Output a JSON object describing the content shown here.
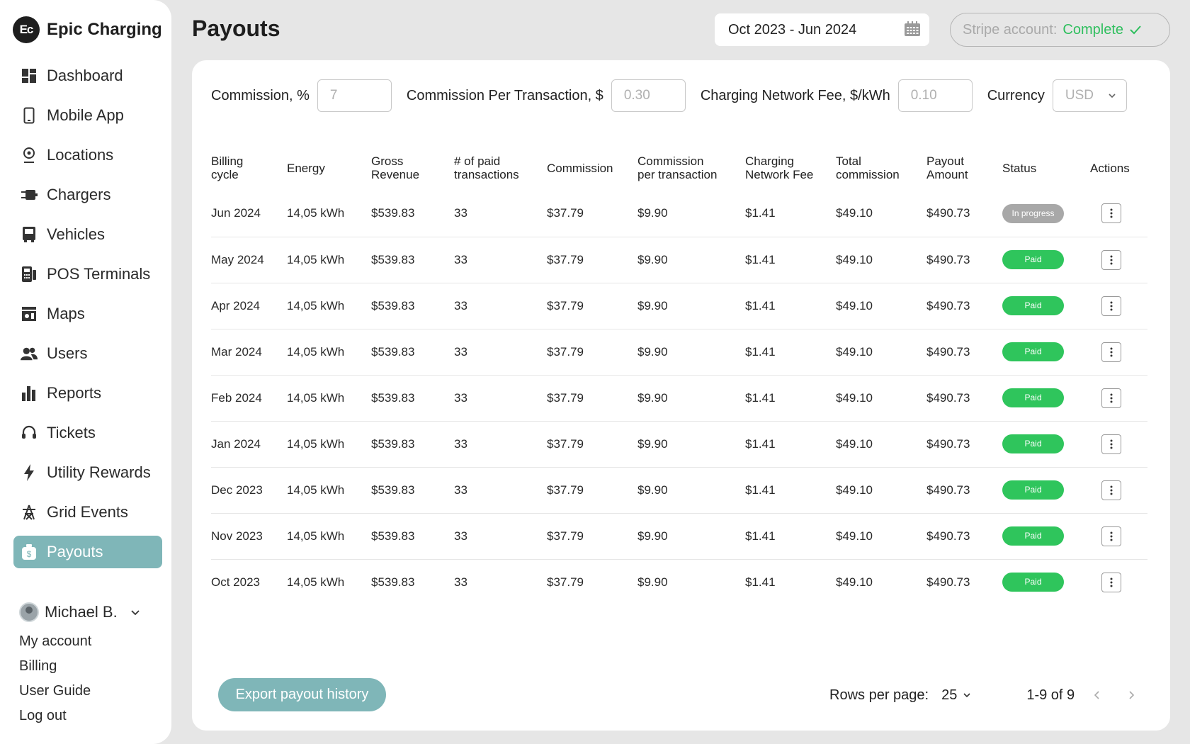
{
  "brand": {
    "logo_text": "Ec",
    "name": "Epic Charging"
  },
  "sidebar": {
    "items": [
      {
        "label": "Dashboard",
        "icon": "dashboard-icon"
      },
      {
        "label": "Mobile App",
        "icon": "phone-icon"
      },
      {
        "label": "Locations",
        "icon": "location-pin-icon"
      },
      {
        "label": "Chargers",
        "icon": "charger-plug-icon"
      },
      {
        "label": "Vehicles",
        "icon": "bus-icon"
      },
      {
        "label": "POS Terminals",
        "icon": "pos-terminal-icon"
      },
      {
        "label": "Maps",
        "icon": "map-icon"
      },
      {
        "label": "Users",
        "icon": "users-icon"
      },
      {
        "label": "Reports",
        "icon": "bar-chart-icon"
      },
      {
        "label": "Tickets",
        "icon": "headset-icon"
      },
      {
        "label": "Utility Rewards",
        "icon": "lightning-icon"
      },
      {
        "label": "Grid Events",
        "icon": "grid-tower-icon"
      },
      {
        "label": "Payouts",
        "icon": "money-bag-icon",
        "active": true
      }
    ]
  },
  "user": {
    "name": "Michael B.",
    "links": [
      "My account",
      "Billing",
      "User Guide",
      "Log out"
    ]
  },
  "header": {
    "title": "Payouts",
    "date_range": "Oct 2023 - Jun 2024",
    "stripe_label": "Stripe account:",
    "stripe_status": "Complete"
  },
  "filters": {
    "commission_label": "Commission, %",
    "commission_value": "7",
    "per_tx_label": "Commission Per Transaction, $",
    "per_tx_value": "0.30",
    "network_fee_label": "Charging Network Fee, $/kWh",
    "network_fee_value": "0.10",
    "currency_label": "Currency",
    "currency_value": "USD"
  },
  "table": {
    "headers": {
      "billing_cycle_1": "Billing",
      "billing_cycle_2": "cycle",
      "energy": "Energy",
      "gross_1": "Gross",
      "gross_2": "Revenue",
      "paid_tx_1": "# of paid",
      "paid_tx_2": "transactions",
      "commission": "Commission",
      "per_tx_1": "Commission",
      "per_tx_2": "per transaction",
      "network_1": "Charging",
      "network_2": "Network Fee",
      "total_1": "Total",
      "total_2": "commission",
      "payout_1": "Payout",
      "payout_2": "Amount",
      "status": "Status",
      "actions": "Actions"
    },
    "rows": [
      {
        "cycle": "Jun 2024",
        "energy": "14,05 kWh",
        "gross": "$539.83",
        "tx": "33",
        "commission": "$37.79",
        "per_tx": "$9.90",
        "network_fee": "$1.41",
        "total": "$49.10",
        "payout": "$490.73",
        "status": "In progress",
        "status_type": "progress"
      },
      {
        "cycle": "May 2024",
        "energy": "14,05 kWh",
        "gross": "$539.83",
        "tx": "33",
        "commission": "$37.79",
        "per_tx": "$9.90",
        "network_fee": "$1.41",
        "total": "$49.10",
        "payout": "$490.73",
        "status": "Paid",
        "status_type": "paid"
      },
      {
        "cycle": "Apr 2024",
        "energy": "14,05 kWh",
        "gross": "$539.83",
        "tx": "33",
        "commission": "$37.79",
        "per_tx": "$9.90",
        "network_fee": "$1.41",
        "total": "$49.10",
        "payout": "$490.73",
        "status": "Paid",
        "status_type": "paid"
      },
      {
        "cycle": "Mar 2024",
        "energy": "14,05 kWh",
        "gross": "$539.83",
        "tx": "33",
        "commission": "$37.79",
        "per_tx": "$9.90",
        "network_fee": "$1.41",
        "total": "$49.10",
        "payout": "$490.73",
        "status": "Paid",
        "status_type": "paid"
      },
      {
        "cycle": "Feb 2024",
        "energy": "14,05 kWh",
        "gross": "$539.83",
        "tx": "33",
        "commission": "$37.79",
        "per_tx": "$9.90",
        "network_fee": "$1.41",
        "total": "$49.10",
        "payout": "$490.73",
        "status": "Paid",
        "status_type": "paid"
      },
      {
        "cycle": "Jan 2024",
        "energy": "14,05 kWh",
        "gross": "$539.83",
        "tx": "33",
        "commission": "$37.79",
        "per_tx": "$9.90",
        "network_fee": "$1.41",
        "total": "$49.10",
        "payout": "$490.73",
        "status": "Paid",
        "status_type": "paid"
      },
      {
        "cycle": "Dec 2023",
        "energy": "14,05 kWh",
        "gross": "$539.83",
        "tx": "33",
        "commission": "$37.79",
        "per_tx": "$9.90",
        "network_fee": "$1.41",
        "total": "$49.10",
        "payout": "$490.73",
        "status": "Paid",
        "status_type": "paid"
      },
      {
        "cycle": "Nov 2023",
        "energy": "14,05 kWh",
        "gross": "$539.83",
        "tx": "33",
        "commission": "$37.79",
        "per_tx": "$9.90",
        "network_fee": "$1.41",
        "total": "$49.10",
        "payout": "$490.73",
        "status": "Paid",
        "status_type": "paid"
      },
      {
        "cycle": "Oct 2023",
        "energy": "14,05 kWh",
        "gross": "$539.83",
        "tx": "33",
        "commission": "$37.79",
        "per_tx": "$9.90",
        "network_fee": "$1.41",
        "total": "$49.10",
        "payout": "$490.73",
        "status": "Paid",
        "status_type": "paid"
      }
    ]
  },
  "footer": {
    "export_label": "Export payout history",
    "rows_per_page_label": "Rows per page:",
    "rows_per_page_value": "25",
    "range": "1-9 of 9"
  },
  "colors": {
    "accent": "#7fb6b8",
    "paid": "#2fc55c",
    "in_progress": "#a8a8a8",
    "complete": "#2fbf5e"
  }
}
